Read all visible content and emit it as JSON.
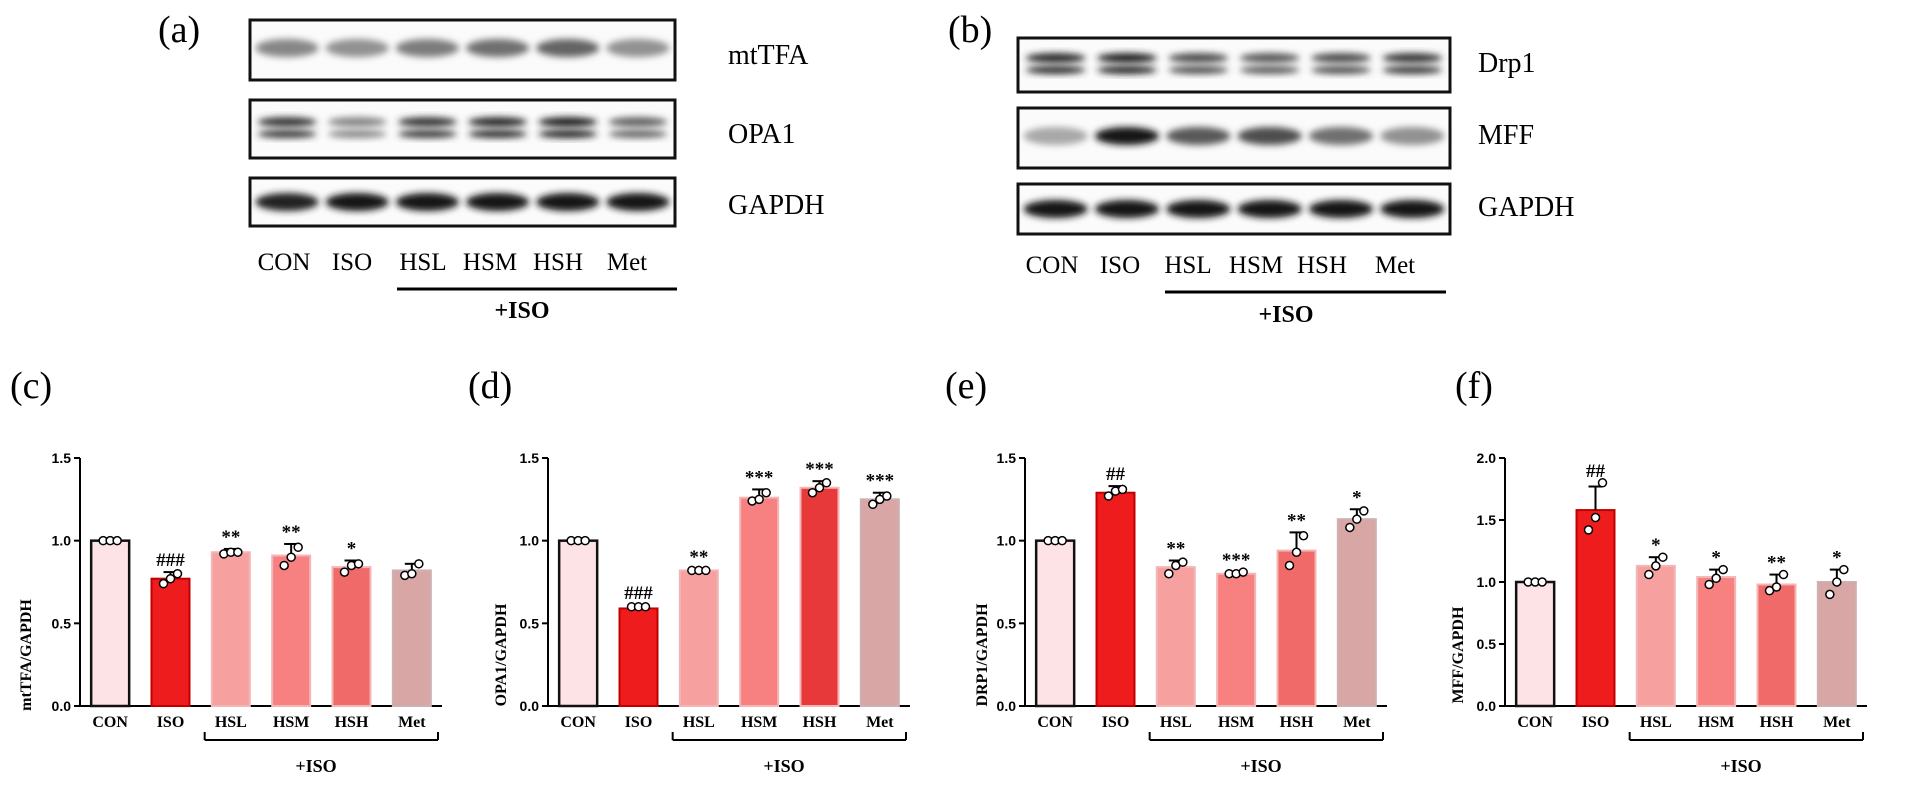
{
  "panel_a": {
    "label": "(a)",
    "bands": [
      {
        "name": "mtTFA",
        "intensity": [
          0.45,
          0.4,
          0.5,
          0.55,
          0.6,
          0.4
        ]
      },
      {
        "name": "OPA1",
        "intensity": [
          0.8,
          0.45,
          0.8,
          0.85,
          0.9,
          0.6
        ]
      },
      {
        "name": "GAPDH",
        "intensity": [
          0.9,
          0.95,
          0.95,
          0.95,
          0.95,
          0.95
        ]
      }
    ],
    "lanes": [
      "CON",
      "ISO",
      "HSL",
      "HSM",
      "HSH",
      "Met"
    ],
    "treatment": "+ISO"
  },
  "panel_b": {
    "label": "(b)",
    "bands": [
      {
        "name": "Drp1",
        "intensity": [
          0.85,
          0.9,
          0.7,
          0.65,
          0.7,
          0.8
        ]
      },
      {
        "name": "MFF",
        "intensity": [
          0.3,
          0.95,
          0.65,
          0.7,
          0.55,
          0.4
        ]
      },
      {
        "name": "GAPDH",
        "intensity": [
          0.95,
          0.95,
          0.95,
          0.95,
          0.95,
          0.95
        ]
      }
    ],
    "lanes": [
      "CON",
      "ISO",
      "HSL",
      "HSM",
      "HSH",
      "Met"
    ],
    "treatment": "+ISO"
  },
  "chart_data": [
    {
      "type": "bar",
      "panel": "(c)",
      "ylabel": "mtTFA/GAPDH",
      "categories": [
        "CON",
        "ISO",
        "HSL",
        "HSM",
        "HSH",
        "Met"
      ],
      "values": [
        1.0,
        0.77,
        0.93,
        0.91,
        0.84,
        0.82
      ],
      "errors": [
        0,
        0.04,
        0.02,
        0.07,
        0.04,
        0.04
      ],
      "points": [
        [
          1.0,
          1.0,
          1.0
        ],
        [
          0.74,
          0.77,
          0.8
        ],
        [
          0.92,
          0.93,
          0.93
        ],
        [
          0.85,
          0.9,
          0.96
        ],
        [
          0.81,
          0.85,
          0.86
        ],
        [
          0.79,
          0.8,
          0.86
        ]
      ],
      "significance": [
        "",
        "###",
        "**",
        "**",
        "*",
        ""
      ],
      "ylim": [
        0,
        1.5
      ],
      "yticks": [
        0.0,
        0.5,
        1.0,
        1.5
      ],
      "treatment": "+ISO"
    },
    {
      "type": "bar",
      "panel": "(d)",
      "ylabel": "OPA1/GAPDH",
      "categories": [
        "CON",
        "ISO",
        "HSL",
        "HSM",
        "HSH",
        "Met"
      ],
      "values": [
        1.0,
        0.59,
        0.82,
        1.26,
        1.32,
        1.25
      ],
      "errors": [
        0,
        0.02,
        0.01,
        0.05,
        0.04,
        0.04
      ],
      "points": [
        [
          1.0,
          1.0,
          1.0
        ],
        [
          0.6,
          0.6,
          0.6
        ],
        [
          0.82,
          0.82,
          0.82
        ],
        [
          1.24,
          1.25,
          1.29
        ],
        [
          1.29,
          1.32,
          1.35
        ],
        [
          1.22,
          1.25,
          1.27
        ]
      ],
      "significance": [
        "",
        "###",
        "**",
        "***",
        "***",
        "***"
      ],
      "ylim": [
        0,
        1.5
      ],
      "yticks": [
        0.0,
        0.5,
        1.0,
        1.5
      ],
      "treatment": "+ISO"
    },
    {
      "type": "bar",
      "panel": "(e)",
      "ylabel": "DRP1/GAPDH",
      "categories": [
        "CON",
        "ISO",
        "HSL",
        "HSM",
        "HSH",
        "Met"
      ],
      "values": [
        1.0,
        1.29,
        0.84,
        0.8,
        0.94,
        1.13
      ],
      "errors": [
        0,
        0.04,
        0.04,
        0.01,
        0.11,
        0.06
      ],
      "points": [
        [
          1.0,
          1.0,
          1.0
        ],
        [
          1.27,
          1.3,
          1.31
        ],
        [
          0.8,
          0.85,
          0.87
        ],
        [
          0.8,
          0.8,
          0.81
        ],
        [
          0.85,
          0.93,
          1.03
        ],
        [
          1.08,
          1.13,
          1.18
        ]
      ],
      "significance": [
        "",
        "##",
        "**",
        "***",
        "**",
        "*"
      ],
      "ylim": [
        0,
        1.5
      ],
      "yticks": [
        0.0,
        0.5,
        1.0,
        1.5
      ],
      "treatment": "+ISO"
    },
    {
      "type": "bar",
      "panel": "(f)",
      "ylabel": "MFF/GAPDH",
      "categories": [
        "CON",
        "ISO",
        "HSL",
        "HSM",
        "HSH",
        "Met"
      ],
      "values": [
        1.0,
        1.58,
        1.13,
        1.04,
        0.98,
        1.0
      ],
      "errors": [
        0,
        0.19,
        0.07,
        0.06,
        0.08,
        0.1
      ],
      "points": [
        [
          1.0,
          1.0,
          1.0
        ],
        [
          1.42,
          1.52,
          1.8
        ],
        [
          1.06,
          1.13,
          1.2
        ],
        [
          0.98,
          1.03,
          1.1
        ],
        [
          0.93,
          0.96,
          1.06
        ],
        [
          0.9,
          1.0,
          1.1
        ]
      ],
      "significance": [
        "",
        "##",
        "*",
        "*",
        "**",
        "*"
      ],
      "ylim": [
        0,
        2.0
      ],
      "yticks": [
        0.0,
        0.5,
        1.0,
        1.5,
        2.0
      ],
      "treatment": "+ISO"
    }
  ],
  "colors": {
    "bar_fills": [
      "#fde3e6",
      "#ee1c1c",
      "#f6a0a0",
      "#f78181",
      "#f06a6a",
      "#d9a6a6"
    ],
    "bar_edges": [
      "#111111",
      "#c00000",
      "#f3b6b6",
      "#f3b6b6",
      "#f3b6b6",
      "#cdb0b0"
    ],
    "emphasis_fill": "#e8393a",
    "ink": "#000000"
  }
}
